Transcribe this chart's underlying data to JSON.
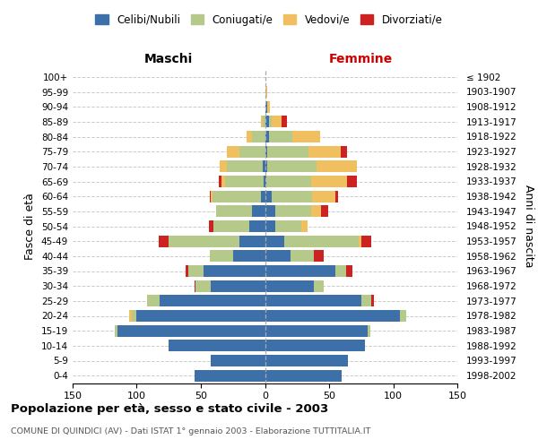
{
  "age_groups": [
    "0-4",
    "5-9",
    "10-14",
    "15-19",
    "20-24",
    "25-29",
    "30-34",
    "35-39",
    "40-44",
    "45-49",
    "50-54",
    "55-59",
    "60-64",
    "65-69",
    "70-74",
    "75-79",
    "80-84",
    "85-89",
    "90-94",
    "95-99",
    "100+"
  ],
  "birth_years": [
    "1998-2002",
    "1993-1997",
    "1988-1992",
    "1983-1987",
    "1978-1982",
    "1973-1977",
    "1968-1972",
    "1963-1967",
    "1958-1962",
    "1953-1957",
    "1948-1952",
    "1943-1947",
    "1938-1942",
    "1933-1937",
    "1928-1932",
    "1923-1927",
    "1918-1922",
    "1913-1917",
    "1908-1912",
    "1903-1907",
    "≤ 1902"
  ],
  "maschi": {
    "celibi": [
      55,
      42,
      75,
      115,
      100,
      82,
      42,
      48,
      25,
      20,
      12,
      10,
      3,
      1,
      2,
      0,
      0,
      0,
      0,
      0,
      0
    ],
    "coniugati": [
      0,
      0,
      0,
      2,
      4,
      10,
      12,
      12,
      18,
      55,
      28,
      28,
      38,
      30,
      28,
      20,
      10,
      2,
      0,
      0,
      0
    ],
    "vedovi": [
      0,
      0,
      0,
      0,
      2,
      0,
      0,
      0,
      0,
      0,
      0,
      0,
      1,
      3,
      5,
      10,
      4,
      1,
      0,
      0,
      0
    ],
    "divorziati": [
      0,
      0,
      0,
      0,
      0,
      0,
      1,
      2,
      0,
      8,
      4,
      0,
      1,
      2,
      0,
      0,
      0,
      0,
      0,
      0,
      0
    ]
  },
  "femmine": {
    "nubili": [
      60,
      65,
      78,
      80,
      105,
      75,
      38,
      55,
      20,
      15,
      8,
      8,
      5,
      1,
      2,
      2,
      3,
      3,
      2,
      0,
      0
    ],
    "coniugate": [
      0,
      0,
      0,
      2,
      5,
      8,
      8,
      8,
      18,
      58,
      20,
      28,
      32,
      35,
      38,
      32,
      18,
      2,
      0,
      0,
      0
    ],
    "vedove": [
      0,
      0,
      0,
      0,
      0,
      0,
      0,
      0,
      0,
      2,
      5,
      8,
      18,
      28,
      32,
      25,
      22,
      8,
      2,
      2,
      0
    ],
    "divorziate": [
      0,
      0,
      0,
      0,
      0,
      2,
      0,
      5,
      8,
      8,
      0,
      5,
      2,
      8,
      0,
      5,
      0,
      4,
      0,
      0,
      0
    ]
  },
  "colors": {
    "celibi_nubili": "#3d6fa8",
    "coniugati": "#b5c98b",
    "vedovi": "#f0c060",
    "divorziati": "#cc2222"
  },
  "xlim": 150,
  "title": "Popolazione per età, sesso e stato civile - 2003",
  "subtitle": "COMUNE DI QUINDICI (AV) - Dati ISTAT 1° gennaio 2003 - Elaborazione TUTTITALIA.IT",
  "ylabel_left": "Fasce di età",
  "ylabel_right": "Anni di nascita",
  "xlabel_left": "Maschi",
  "xlabel_right": "Femmine",
  "bg_color": "#ffffff",
  "grid_color": "#cccccc"
}
